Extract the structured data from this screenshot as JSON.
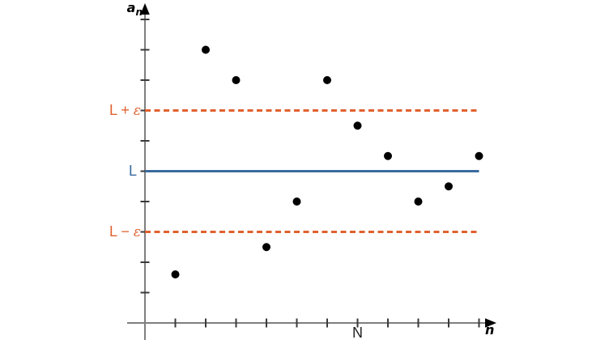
{
  "figure_labels": {
    "y_axis_base": "a",
    "y_axis_sub": "n",
    "x_axis": "n",
    "N": "N"
  },
  "chart_data": {
    "type": "scatter",
    "xlabel": "n",
    "ylabel": "a_n",
    "x": [
      1,
      2,
      3,
      4,
      5,
      6,
      7,
      8,
      9,
      10,
      11
    ],
    "y": [
      1.6,
      9.0,
      8.0,
      2.5,
      4.0,
      8.0,
      6.5,
      5.5,
      4.0,
      4.5,
      5.5
    ],
    "x_ticks": [
      1,
      2,
      3,
      4,
      5,
      6,
      7,
      8,
      9,
      10,
      11
    ],
    "y_ticks": [
      1,
      2,
      3,
      4,
      5,
      6,
      7,
      8,
      9,
      10
    ],
    "xlim": [
      0,
      11.6
    ],
    "ylim": [
      0,
      10.5
    ],
    "N_tick": 7,
    "grid": false,
    "legend": null,
    "reference_lines": [
      {
        "name": "L-plus-epsilon",
        "label_prefix": "L + ",
        "label_epsilon": "ε",
        "value": 7,
        "style": "dashed",
        "color": "#e0612f"
      },
      {
        "name": "L",
        "label_prefix": "L",
        "label_epsilon": "",
        "value": 5,
        "style": "solid",
        "color": "#3a6b9e"
      },
      {
        "name": "L-minus-epsilon",
        "label_prefix": "L − ",
        "label_epsilon": "ε",
        "value": 3,
        "style": "dashed",
        "color": "#e0612f"
      }
    ],
    "colors": {
      "axis": "#7f7f7f",
      "tick": "#3a3a3a",
      "point": "#000000",
      "arrow": "#000000"
    }
  }
}
